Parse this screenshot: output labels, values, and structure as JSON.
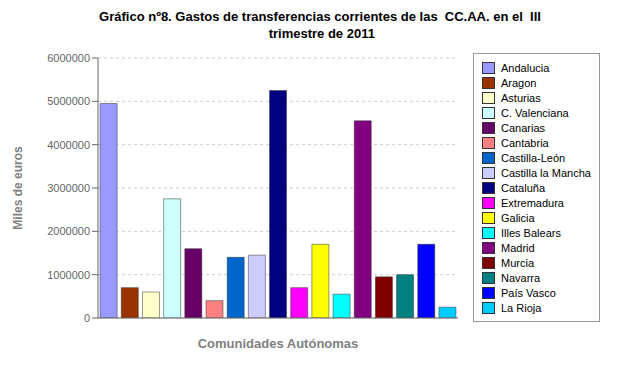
{
  "chart_data": {
    "type": "bar",
    "title": "Gráfico nº8. Gastos de transferencias corrientes de las  CC.AA. en el  III\n trimestre de 2011",
    "xlabel": "Comunidades Autónomas",
    "ylabel": "Miles de euros",
    "categories": [
      "Andalucia",
      "Aragon",
      "Asturias",
      "C. Valenciana",
      "Canarias",
      "Cantabria",
      "Castilla-León",
      "Castilla la Mancha",
      "Cataluña",
      "Extremadura",
      "Galicia",
      "Illes Balears",
      "Madrid",
      "Murcia",
      "Navarra",
      "País Vasco",
      "La Rioja"
    ],
    "values": [
      4950000,
      700000,
      600000,
      2750000,
      1600000,
      400000,
      1400000,
      1450000,
      5250000,
      700000,
      1700000,
      550000,
      4550000,
      950000,
      1000000,
      1700000,
      250000
    ],
    "colors": [
      "#9999FF",
      "#993300",
      "#FFFFCC",
      "#CCFFFF",
      "#660066",
      "#FF8080",
      "#0066CC",
      "#CCCCFF",
      "#000080",
      "#FF00FF",
      "#FFFF00",
      "#00FFFF",
      "#800080",
      "#800000",
      "#008080",
      "#0000FF",
      "#00CCFF"
    ],
    "ylim": [
      0,
      6000000
    ],
    "yticks": [
      0,
      1000000,
      2000000,
      3000000,
      4000000,
      5000000,
      6000000
    ],
    "grid": true,
    "legend": "right",
    "tick_labels": "y"
  }
}
